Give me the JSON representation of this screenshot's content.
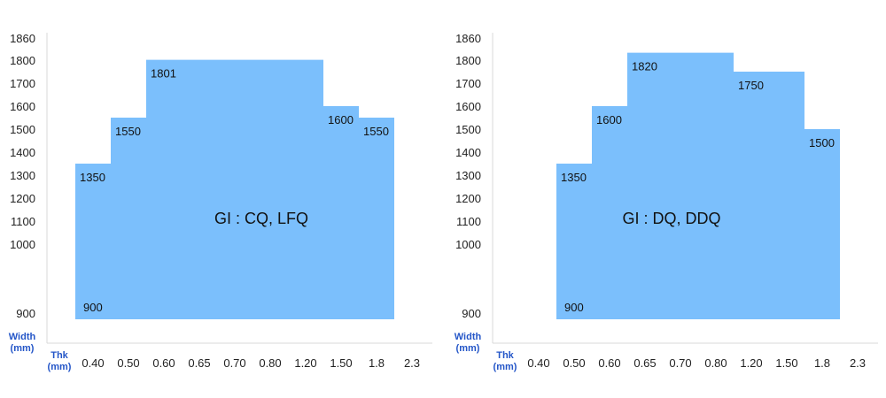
{
  "chart_data": [
    {
      "type": "area",
      "annotation": "GI : CQ, LFQ",
      "xlabel": "Thk\n(mm)",
      "ylabel": "Width\n(mm)",
      "categories": [
        "0.40",
        "0.50",
        "0.60",
        "0.65",
        "0.70",
        "0.80",
        "1.20",
        "1.50",
        "1.8",
        "2.3"
      ],
      "y_ticks": [
        900,
        1000,
        1100,
        1200,
        1300,
        1400,
        1500,
        1600,
        1700,
        1800,
        1860
      ],
      "steps": [
        {
          "from": "0.40",
          "to": "0.50",
          "width_max": 1350
        },
        {
          "from": "0.50",
          "to": "0.60",
          "width_max": 1550
        },
        {
          "from": "0.60",
          "to": "1.50",
          "width_max": 1801
        },
        {
          "from": "1.50",
          "to": "1.8",
          "width_max": 1600
        },
        {
          "from": "1.8",
          "to": "2.3",
          "width_max": 1550
        }
      ],
      "width_min": 900,
      "value_labels": [
        {
          "text": "1350"
        },
        {
          "text": "1550"
        },
        {
          "text": "1801"
        },
        {
          "text": "1600"
        },
        {
          "text": "1550"
        },
        {
          "text": "900"
        }
      ],
      "colors": {
        "fill": "#7bbffc",
        "axis_title": "#2456c8",
        "axis_line": "#d9d9d9"
      }
    },
    {
      "type": "area",
      "annotation": "GI : DQ, DDQ",
      "xlabel": "Thk\n(mm)",
      "ylabel": "Width\n(mm)",
      "categories": [
        "0.40",
        "0.50",
        "0.60",
        "0.65",
        "0.70",
        "0.80",
        "1.20",
        "1.50",
        "1.8",
        "2.3"
      ],
      "y_ticks": [
        900,
        1000,
        1100,
        1200,
        1300,
        1400,
        1500,
        1600,
        1700,
        1800,
        1860
      ],
      "steps": [
        {
          "from": "0.50",
          "to": "0.60",
          "width_max": 1350
        },
        {
          "from": "0.60",
          "to": "0.65",
          "width_max": 1600
        },
        {
          "from": "0.65",
          "to": "1.20",
          "width_max": 1820
        },
        {
          "from": "1.20",
          "to": "1.8",
          "width_max": 1750
        },
        {
          "from": "1.8",
          "to": "2.3",
          "width_max": 1500
        }
      ],
      "width_min": 900,
      "value_labels": [
        {
          "text": "1350"
        },
        {
          "text": "1600"
        },
        {
          "text": "1820"
        },
        {
          "text": "1750"
        },
        {
          "text": "1500"
        },
        {
          "text": "900"
        }
      ],
      "colors": {
        "fill": "#7bbffc",
        "axis_title": "#2456c8",
        "axis_line": "#d9d9d9"
      }
    }
  ]
}
